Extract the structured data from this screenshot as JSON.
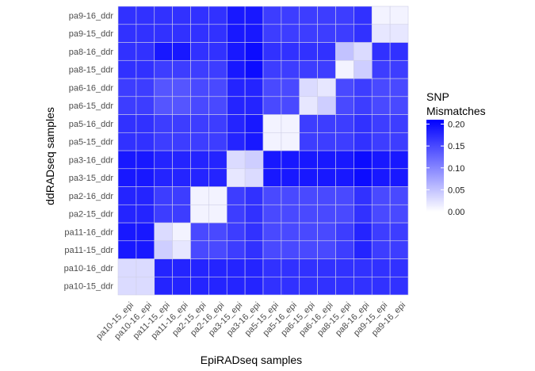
{
  "chart_data": {
    "type": "heatmap",
    "xlabel": "EpiRADseq samples",
    "ylabel": "ddRADseq samples",
    "x_categories": [
      "pa10-15_epi",
      "pa10-16_epi",
      "pa11-15_epi",
      "pa11-16_epi",
      "pa2-15_epi",
      "pa2-16_epi",
      "pa3-15_epi",
      "pa3-16_epi",
      "pa5-15_epi",
      "pa5-16_epi",
      "pa6-15_epi",
      "pa6-16_epi",
      "pa8-15_epi",
      "pa8-16_epi",
      "pa9-15_epi",
      "pa9-16_epi"
    ],
    "y_categories": [
      "pa10-15_ddr",
      "pa10-16_ddr",
      "pa11-15_ddr",
      "pa11-16_ddr",
      "pa2-15_ddr",
      "pa2-16_ddr",
      "pa3-15_ddr",
      "pa3-16_ddr",
      "pa5-15_ddr",
      "pa5-16_ddr",
      "pa6-15_ddr",
      "pa6-16_ddr",
      "pa8-15_ddr",
      "pa8-16_ddr",
      "pa9-15_ddr",
      "pa9-16_ddr"
    ],
    "values": [
      [
        0.03,
        0.03,
        0.18,
        0.18,
        0.18,
        0.18,
        0.18,
        0.18,
        0.17,
        0.17,
        0.17,
        0.17,
        0.17,
        0.17,
        0.17,
        0.17
      ],
      [
        0.03,
        0.03,
        0.18,
        0.18,
        0.18,
        0.18,
        0.18,
        0.18,
        0.17,
        0.17,
        0.17,
        0.17,
        0.17,
        0.17,
        0.17,
        0.17
      ],
      [
        0.19,
        0.19,
        0.04,
        0.02,
        0.15,
        0.15,
        0.16,
        0.17,
        0.15,
        0.15,
        0.15,
        0.15,
        0.16,
        0.18,
        0.16,
        0.16
      ],
      [
        0.19,
        0.19,
        0.03,
        0.01,
        0.15,
        0.15,
        0.16,
        0.17,
        0.15,
        0.15,
        0.15,
        0.15,
        0.16,
        0.18,
        0.16,
        0.16
      ],
      [
        0.18,
        0.18,
        0.16,
        0.16,
        0.01,
        0.01,
        0.16,
        0.17,
        0.15,
        0.15,
        0.15,
        0.15,
        0.15,
        0.17,
        0.15,
        0.15
      ],
      [
        0.18,
        0.18,
        0.16,
        0.16,
        0.01,
        0.01,
        0.16,
        0.17,
        0.15,
        0.15,
        0.15,
        0.15,
        0.15,
        0.17,
        0.15,
        0.15
      ],
      [
        0.19,
        0.19,
        0.18,
        0.18,
        0.18,
        0.18,
        0.02,
        0.03,
        0.19,
        0.19,
        0.19,
        0.19,
        0.19,
        0.2,
        0.19,
        0.19
      ],
      [
        0.19,
        0.19,
        0.18,
        0.18,
        0.18,
        0.18,
        0.03,
        0.04,
        0.19,
        0.19,
        0.19,
        0.19,
        0.19,
        0.2,
        0.19,
        0.19
      ],
      [
        0.17,
        0.17,
        0.16,
        0.16,
        0.16,
        0.16,
        0.18,
        0.19,
        0.01,
        0.01,
        0.16,
        0.16,
        0.16,
        0.17,
        0.16,
        0.16
      ],
      [
        0.17,
        0.17,
        0.16,
        0.16,
        0.16,
        0.16,
        0.18,
        0.19,
        0.01,
        0.01,
        0.16,
        0.16,
        0.16,
        0.17,
        0.16,
        0.16
      ],
      [
        0.16,
        0.16,
        0.14,
        0.14,
        0.15,
        0.15,
        0.18,
        0.18,
        0.15,
        0.15,
        0.02,
        0.04,
        0.15,
        0.16,
        0.15,
        0.15
      ],
      [
        0.16,
        0.16,
        0.14,
        0.14,
        0.15,
        0.15,
        0.18,
        0.18,
        0.15,
        0.15,
        0.03,
        0.02,
        0.15,
        0.16,
        0.15,
        0.15
      ],
      [
        0.17,
        0.17,
        0.16,
        0.16,
        0.16,
        0.16,
        0.19,
        0.2,
        0.16,
        0.16,
        0.16,
        0.16,
        0.01,
        0.04,
        0.16,
        0.16
      ],
      [
        0.17,
        0.17,
        0.19,
        0.19,
        0.17,
        0.17,
        0.19,
        0.2,
        0.17,
        0.17,
        0.17,
        0.17,
        0.05,
        0.03,
        0.17,
        0.17
      ],
      [
        0.17,
        0.17,
        0.17,
        0.17,
        0.17,
        0.17,
        0.19,
        0.19,
        0.16,
        0.16,
        0.16,
        0.16,
        0.16,
        0.17,
        0.02,
        0.02
      ],
      [
        0.17,
        0.17,
        0.17,
        0.17,
        0.17,
        0.17,
        0.19,
        0.19,
        0.16,
        0.16,
        0.16,
        0.16,
        0.16,
        0.17,
        0.01,
        0.01
      ]
    ],
    "color_scale": {
      "low": "#ffffff",
      "high": "#0000ff",
      "min": 0,
      "max": 0.21
    },
    "grid_color": "#cfcfe6",
    "legend": {
      "title_lines": [
        "SNP",
        "Mismatches"
      ],
      "ticks": [
        "0.20",
        "0.15",
        "0.10",
        "0.05",
        "0.00"
      ],
      "tick_values": [
        0.2,
        0.15,
        0.1,
        0.05,
        0.0
      ],
      "placement": "right"
    }
  }
}
